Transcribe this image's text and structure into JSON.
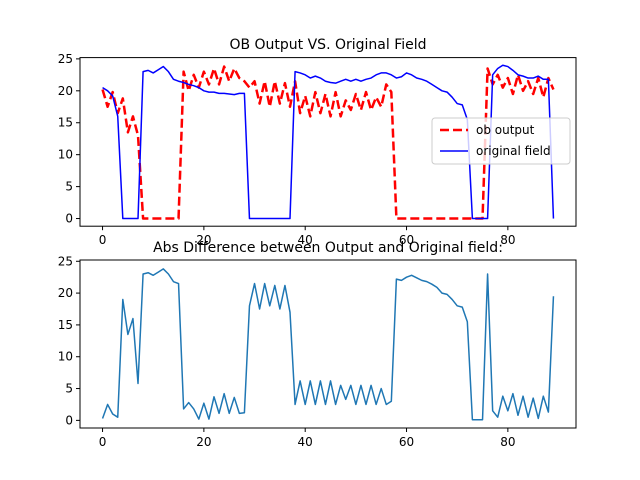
{
  "chart_data": [
    {
      "type": "line",
      "title": "OB Output VS. Original Field",
      "xlabel": "",
      "ylabel": "",
      "xlim": [
        -4.45,
        93.45
      ],
      "ylim": [
        -1.2,
        25.2
      ],
      "xticks": [
        0,
        20,
        40,
        60,
        80
      ],
      "yticks": [
        0,
        5,
        10,
        15,
        20,
        25
      ],
      "grid": false,
      "legend": {
        "position": "center-right"
      },
      "series": [
        {
          "name": "ob output",
          "color": "#ff0000",
          "style": "dashed",
          "x": [
            0,
            1,
            2,
            3,
            4,
            5,
            6,
            7,
            8,
            9,
            10,
            11,
            12,
            13,
            14,
            15,
            16,
            17,
            18,
            19,
            20,
            21,
            22,
            23,
            24,
            25,
            26,
            27,
            28,
            29,
            30,
            31,
            32,
            33,
            34,
            35,
            36,
            37,
            38,
            39,
            40,
            41,
            42,
            43,
            44,
            45,
            46,
            47,
            48,
            49,
            50,
            51,
            52,
            53,
            54,
            55,
            56,
            57,
            58,
            59,
            60,
            61,
            62,
            63,
            64,
            65,
            66,
            67,
            68,
            69,
            70,
            71,
            72,
            73,
            74,
            75,
            76,
            77,
            78,
            79,
            80,
            81,
            82,
            83,
            84,
            85,
            86,
            87,
            88,
            89
          ],
          "values": [
            20.2,
            17.5,
            19.8,
            16.5,
            18.8,
            13.5,
            16.0,
            13.0,
            0,
            0,
            0,
            0,
            0,
            0,
            0,
            0,
            23.0,
            20.0,
            22.5,
            20.5,
            23.0,
            21.0,
            23.5,
            21.0,
            23.8,
            21.5,
            23.5,
            22.0,
            21.5,
            20.5,
            21.5,
            18.0,
            21.5,
            17.5,
            21.5,
            18.0,
            21.2,
            17.5,
            21.5,
            16.5,
            19.2,
            16.0,
            19.8,
            16.5,
            19.5,
            16.0,
            19.8,
            16.0,
            18.5,
            17.0,
            19.5,
            17.0,
            19.8,
            17.0,
            19.0,
            17.5,
            21.0,
            19.8,
            0,
            0,
            0,
            0,
            0,
            0,
            0,
            0,
            0,
            0,
            0,
            0,
            0,
            0,
            0,
            0,
            0,
            0,
            23.5,
            21.0,
            22.5,
            20.5,
            22.0,
            19.5,
            22.5,
            20.0,
            21.5,
            19.5,
            22.0,
            19.0,
            22.0,
            20.2
          ]
        },
        {
          "name": "original field",
          "color": "#0000ff",
          "style": "solid",
          "x": [
            0,
            1,
            2,
            3,
            4,
            5,
            6,
            7,
            8,
            9,
            10,
            11,
            12,
            13,
            14,
            15,
            16,
            17,
            18,
            19,
            20,
            21,
            22,
            23,
            24,
            25,
            26,
            27,
            28,
            29,
            30,
            31,
            32,
            33,
            34,
            35,
            36,
            37,
            38,
            39,
            40,
            41,
            42,
            43,
            44,
            45,
            46,
            47,
            48,
            49,
            50,
            51,
            52,
            53,
            54,
            55,
            56,
            57,
            58,
            59,
            60,
            61,
            62,
            63,
            64,
            65,
            66,
            67,
            68,
            69,
            70,
            71,
            72,
            73,
            74,
            75,
            76,
            77,
            78,
            79,
            80,
            81,
            82,
            83,
            84,
            85,
            86,
            87,
            88,
            89
          ],
          "values": [
            20.5,
            20.0,
            19.2,
            16.0,
            0,
            0,
            0,
            0,
            23.0,
            23.2,
            22.8,
            23.3,
            23.8,
            23.0,
            21.8,
            21.5,
            21.3,
            21.0,
            20.8,
            20.5,
            20.0,
            19.8,
            19.8,
            19.6,
            19.6,
            19.5,
            19.4,
            19.6,
            19.6,
            0,
            0,
            0,
            0,
            0,
            0,
            0,
            0,
            0,
            23.0,
            22.8,
            22.5,
            22.0,
            22.3,
            22.0,
            21.5,
            21.3,
            21.2,
            21.5,
            21.8,
            21.5,
            21.8,
            21.5,
            21.8,
            22.0,
            22.5,
            22.8,
            22.8,
            22.5,
            22.0,
            22.2,
            22.8,
            22.5,
            22.0,
            21.8,
            21.5,
            21.0,
            20.5,
            20.0,
            19.8,
            19.0,
            18.0,
            17.8,
            15.5,
            0,
            0,
            0,
            0,
            22.5,
            23.5,
            24.0,
            23.8,
            23.2,
            22.5,
            22.3,
            22.0,
            22.0,
            22.3,
            21.8,
            21.8,
            0
          ]
        }
      ]
    },
    {
      "type": "line",
      "title": "Abs Difference between Output and Original field:",
      "xlabel": "",
      "ylabel": "",
      "xlim": [
        -4.45,
        93.45
      ],
      "ylim": [
        -1.2,
        25.2
      ],
      "xticks": [
        0,
        20,
        40,
        60,
        80
      ],
      "yticks": [
        0,
        5,
        10,
        15,
        20,
        25
      ],
      "grid": false,
      "series": [
        {
          "color": "#1f77b4",
          "style": "solid",
          "x": [
            0,
            1,
            2,
            3,
            4,
            5,
            6,
            7,
            8,
            9,
            10,
            11,
            12,
            13,
            14,
            15,
            16,
            17,
            18,
            19,
            20,
            21,
            22,
            23,
            24,
            25,
            26,
            27,
            28,
            29,
            30,
            31,
            32,
            33,
            34,
            35,
            36,
            37,
            38,
            39,
            40,
            41,
            42,
            43,
            44,
            45,
            46,
            47,
            48,
            49,
            50,
            51,
            52,
            53,
            54,
            55,
            56,
            57,
            58,
            59,
            60,
            61,
            62,
            63,
            64,
            65,
            66,
            67,
            68,
            69,
            70,
            71,
            72,
            73,
            74,
            75,
            76,
            77,
            78,
            79,
            80,
            81,
            82,
            83,
            84,
            85,
            86,
            87,
            88,
            89
          ],
          "values": [
            0.3,
            2.5,
            1.0,
            0.5,
            19.0,
            13.5,
            16.0,
            5.8,
            23.0,
            23.2,
            22.8,
            23.3,
            23.8,
            23.0,
            21.8,
            21.5,
            1.8,
            2.8,
            1.8,
            0.2,
            2.7,
            0.2,
            3.7,
            1.1,
            4.2,
            1.1,
            3.6,
            1.1,
            1.2,
            18.0,
            21.5,
            17.5,
            21.5,
            18.0,
            21.2,
            17.5,
            21.2,
            17.0,
            2.5,
            6.2,
            2.5,
            6.2,
            2.5,
            6.2,
            2.5,
            6.2,
            2.5,
            5.5,
            3.3,
            5.5,
            2.5,
            5.5,
            2.5,
            5.5,
            2.5,
            5.0,
            2.5,
            3.0,
            22.2,
            22.0,
            22.5,
            22.8,
            22.4,
            22.0,
            21.8,
            21.4,
            20.9,
            20.0,
            19.8,
            19.0,
            18.0,
            17.8,
            15.5,
            0.1,
            0.1,
            0.1,
            23.0,
            1.5,
            0.5,
            3.8,
            1.5,
            4.2,
            0.8,
            3.8,
            0.5,
            3.5,
            0.3,
            3.8,
            1.3,
            19.5
          ]
        }
      ]
    }
  ]
}
